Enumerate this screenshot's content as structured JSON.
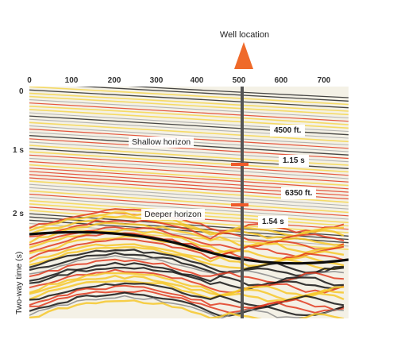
{
  "well": {
    "label": "Well location",
    "arrow_color": "#ef6a2a"
  },
  "x_axis": {
    "ticks": [
      "0",
      "100",
      "200",
      "300",
      "400",
      "500",
      "600",
      "700"
    ]
  },
  "y_axis": {
    "label": "Two-way time (s)",
    "ticks": [
      "0",
      "1 s",
      "2 s"
    ]
  },
  "horizons": {
    "shallow": {
      "label": "Shallow horizon",
      "depth": "4500 ft.",
      "time": "1.15 s"
    },
    "deeper": {
      "label": "Deeper horizon",
      "depth": "6350 ft.",
      "time": "1.54 s"
    }
  },
  "colors": {
    "marker": "#ef5a2a",
    "well_line": "#555555",
    "positive": "#e03a1e",
    "negative": "#1a1a1a",
    "mid": "#f6d23a"
  }
}
